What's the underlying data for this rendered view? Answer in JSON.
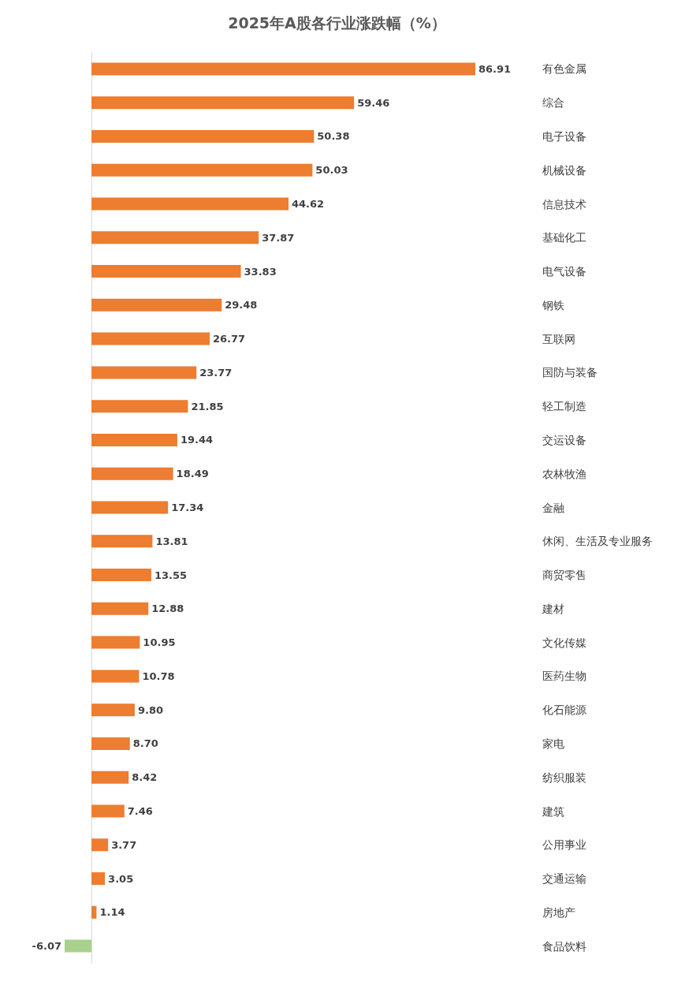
{
  "chart_data": {
    "type": "bar",
    "orientation": "horizontal",
    "title": "2025年A股各行业涨跌幅（%）",
    "categories": [
      "有色金属",
      "综合",
      "电子设备",
      "机械设备",
      "信息技术",
      "基础化工",
      "电气设备",
      "钢铁",
      "互联网",
      "国防与装备",
      "轻工制造",
      "交运设备",
      "农林牧渔",
      "金融",
      "休闲、生活及专业服务",
      "商贸零售",
      "建材",
      "文化传媒",
      "医药生物",
      "化石能源",
      "家电",
      "纺织服装",
      "建筑",
      "公用事业",
      "交通运输",
      "房地产",
      "食品饮料"
    ],
    "values": [
      86.91,
      59.46,
      50.38,
      50.03,
      44.62,
      37.87,
      33.83,
      29.48,
      26.77,
      23.77,
      21.85,
      19.44,
      18.49,
      17.34,
      13.81,
      13.55,
      12.88,
      10.95,
      10.78,
      9.8,
      8.7,
      8.42,
      7.46,
      3.77,
      3.05,
      1.14,
      -6.07
    ],
    "value_labels": [
      "86.91",
      "59.46",
      "50.38",
      "50.03",
      "44.62",
      "37.87",
      "33.83",
      "29.48",
      "26.77",
      "23.77",
      "21.85",
      "19.44",
      "18.49",
      "17.34",
      "13.81",
      "13.55",
      "12.88",
      "10.95",
      "10.78",
      "9.80",
      "8.70",
      "8.42",
      "7.46",
      "3.77",
      "3.05",
      "1.14",
      "-6.07"
    ],
    "colors": [
      "#ed7d31",
      "#ed7d31",
      "#ed7d31",
      "#ed7d31",
      "#ed7d31",
      "#ed7d31",
      "#ed7d31",
      "#ed7d31",
      "#ed7d31",
      "#ed7d31",
      "#ed7d31",
      "#ed7d31",
      "#ed7d31",
      "#ed7d31",
      "#ed7d31",
      "#ed7d31",
      "#ed7d31",
      "#ed7d31",
      "#ed7d31",
      "#ed7d31",
      "#ed7d31",
      "#ed7d31",
      "#ed7d31",
      "#ed7d31",
      "#ed7d31",
      "#ed7d31",
      "#a9d18e"
    ]
  }
}
